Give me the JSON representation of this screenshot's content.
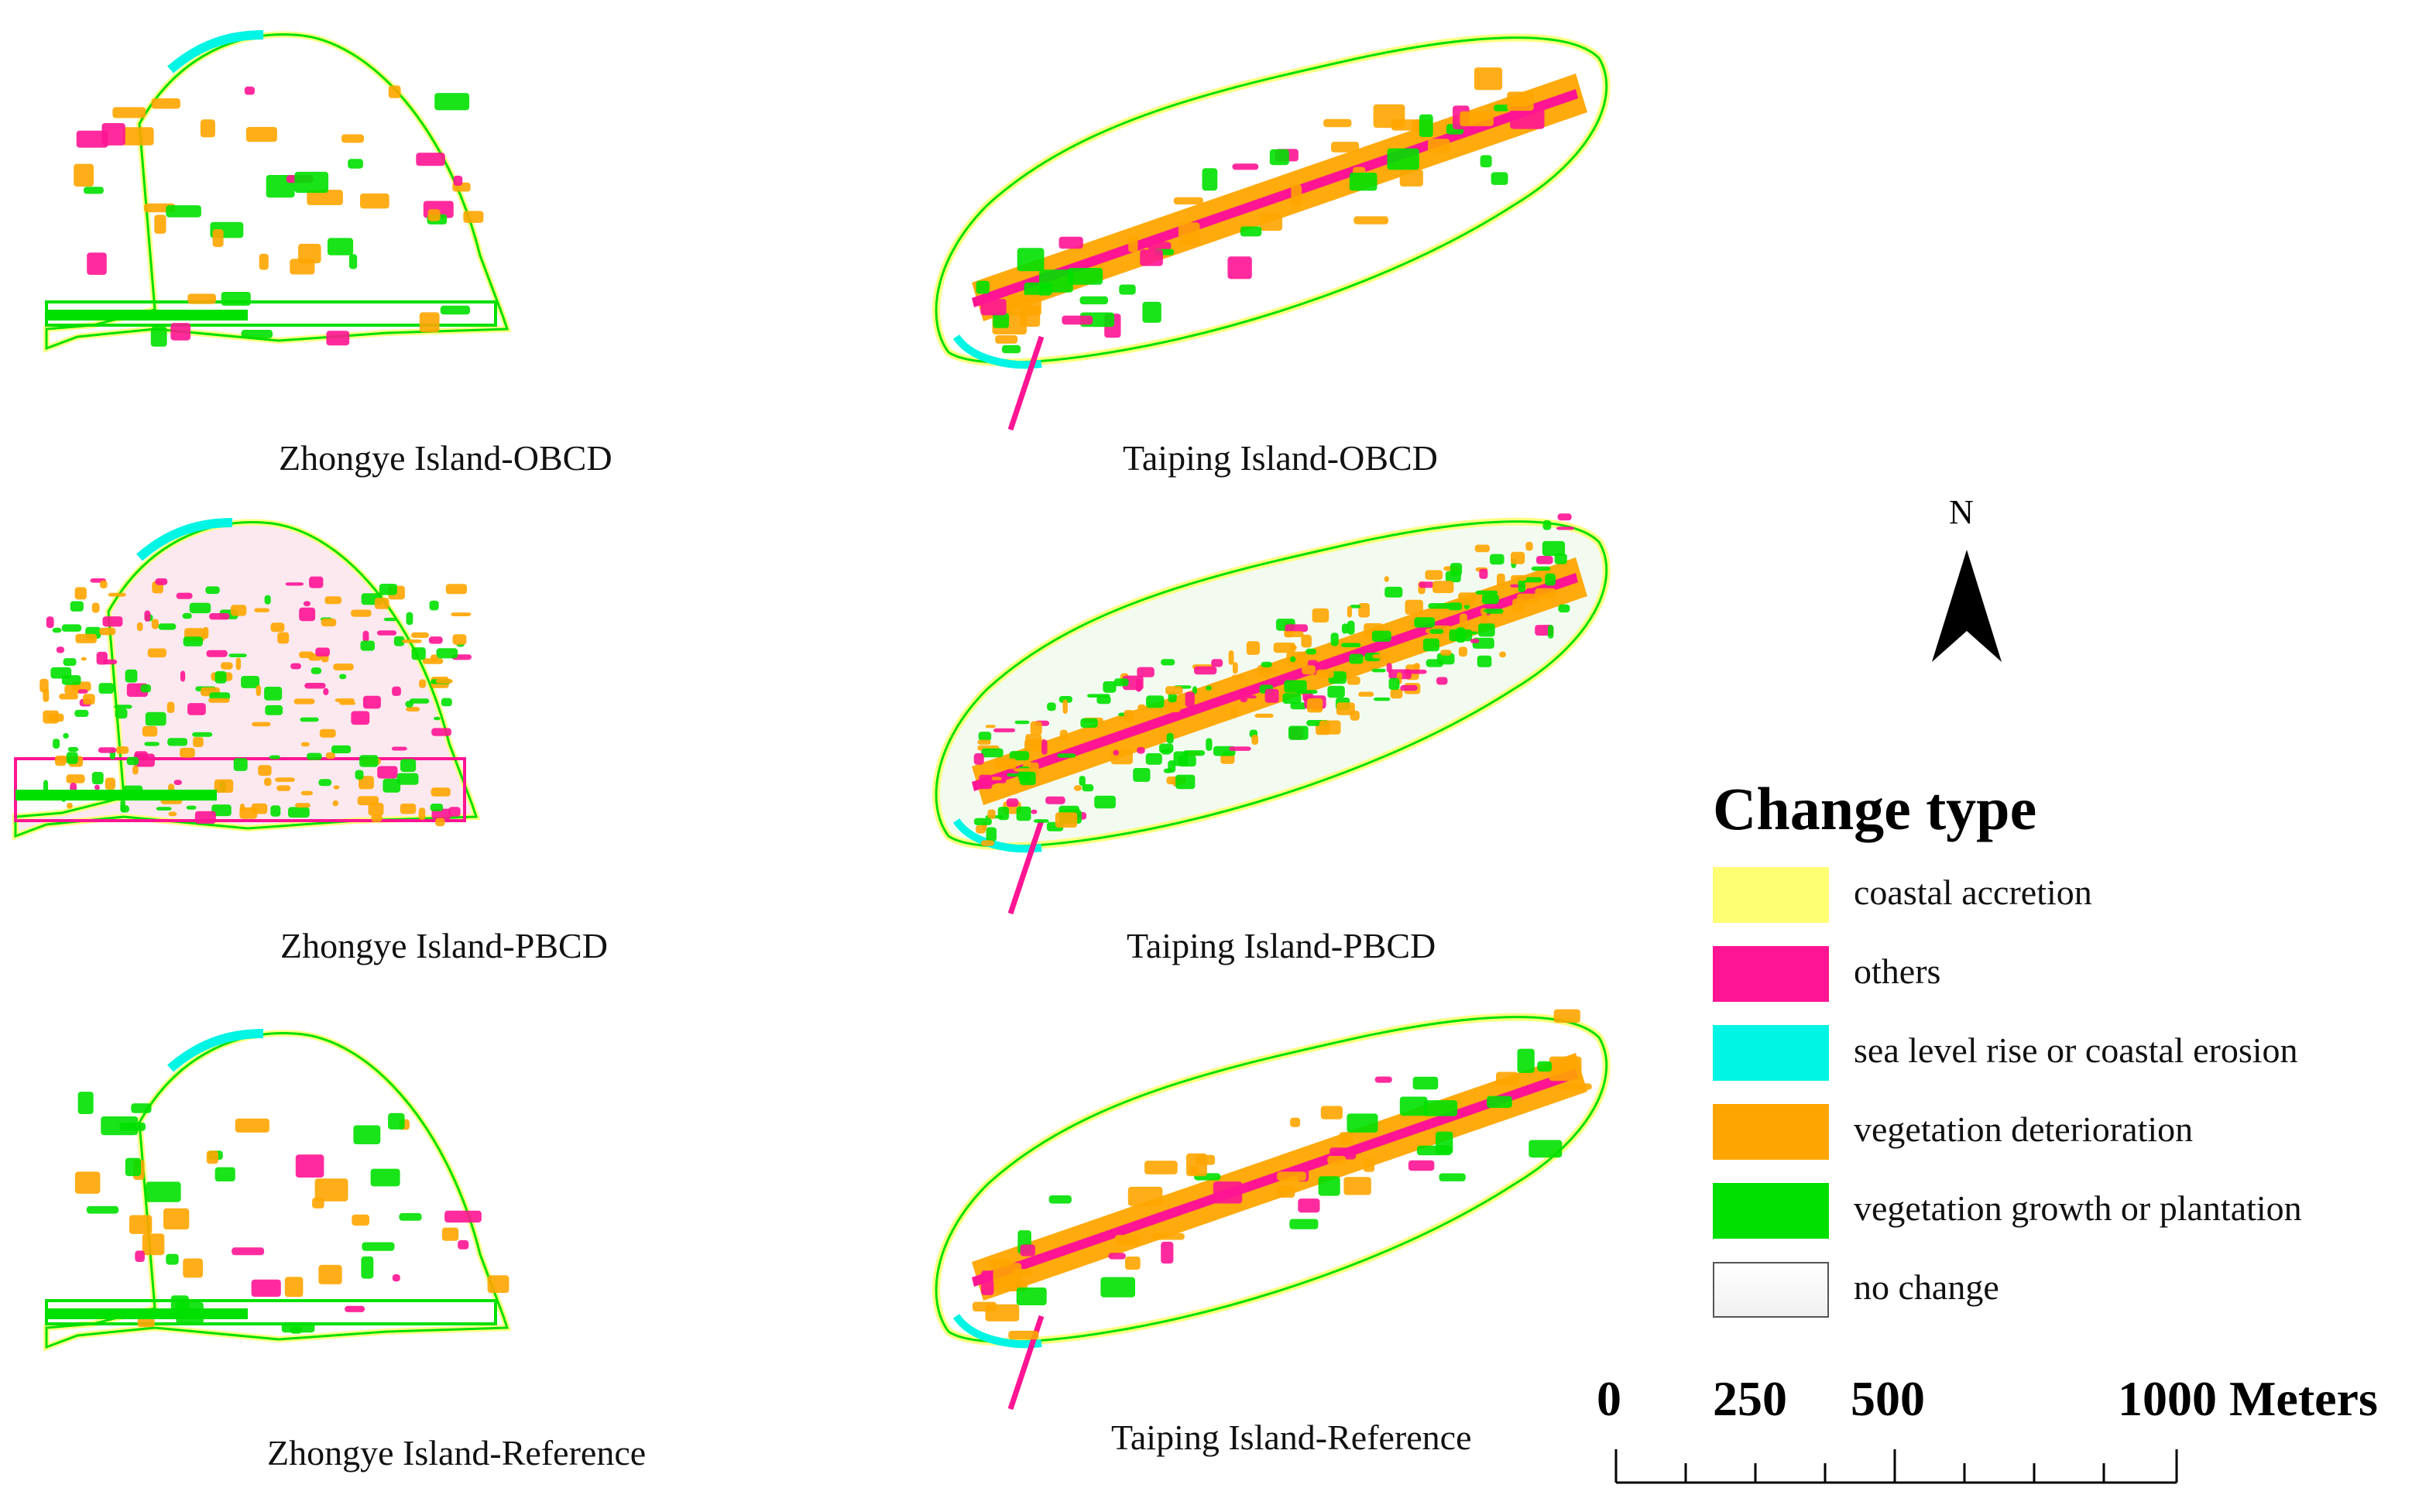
{
  "panels": [
    {
      "caption": "Zhongye Island-OBCD",
      "island": "zhongye",
      "variant": "obcd"
    },
    {
      "caption": "Taiping Island-OBCD",
      "island": "taiping",
      "variant": "obcd"
    },
    {
      "caption": "Zhongye Island-PBCD",
      "island": "zhongye",
      "variant": "pbcd"
    },
    {
      "caption": "Taiping Island-PBCD",
      "island": "taiping",
      "variant": "pbcd"
    },
    {
      "caption": "Zhongye Island-Reference",
      "island": "zhongye",
      "variant": "reference"
    },
    {
      "caption": "Taiping Island-Reference",
      "island": "taiping",
      "variant": "reference"
    }
  ],
  "legend": {
    "title": "Change type",
    "items": [
      {
        "label": "coastal accretion",
        "color": "#ffff73"
      },
      {
        "label": "others",
        "color": "#ff1493"
      },
      {
        "label": "sea level rise or coastal erosion",
        "color": "#00f5e4"
      },
      {
        "label": "vegetation deterioration",
        "color": "#ffa500"
      },
      {
        "label": "vegetation growth or plantation",
        "color": "#00e000"
      },
      {
        "label": "no change",
        "color": "#ffffff"
      }
    ]
  },
  "north_arrow": {
    "label": "N"
  },
  "scale": {
    "ticks": [
      "0",
      "250",
      "500",
      "1000 Meters"
    ]
  }
}
